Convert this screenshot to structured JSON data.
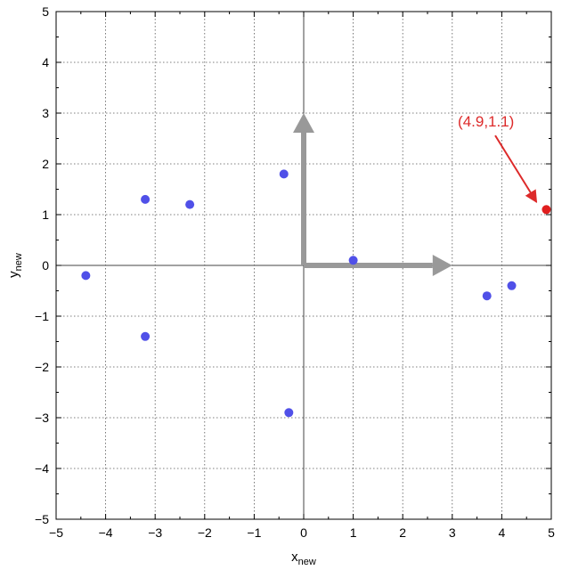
{
  "chart_data": {
    "type": "scatter",
    "xlabel": "x",
    "xlabel_sub": "new",
    "ylabel": "y",
    "ylabel_sub": "new",
    "xlim": [
      -5,
      5
    ],
    "ylim": [
      -5,
      5
    ],
    "xticks": [
      -5,
      -4,
      -3,
      -2,
      -1,
      0,
      1,
      2,
      3,
      4,
      5
    ],
    "yticks": [
      -5,
      -4,
      -3,
      -2,
      -1,
      0,
      1,
      2,
      3,
      4,
      5
    ],
    "grid": true,
    "grid_style": "dotted",
    "points": [
      {
        "x": -4.4,
        "y": -0.2
      },
      {
        "x": -3.2,
        "y": 1.3
      },
      {
        "x": -2.3,
        "y": 1.2
      },
      {
        "x": -3.2,
        "y": -1.4
      },
      {
        "x": -0.4,
        "y": 1.8
      },
      {
        "x": -0.3,
        "y": -2.9
      },
      {
        "x": 1.0,
        "y": 0.1
      },
      {
        "x": 3.7,
        "y": -0.6
      },
      {
        "x": 4.2,
        "y": -0.4
      }
    ],
    "point_color": "#5050e8",
    "highlight": {
      "x": 4.9,
      "y": 1.1,
      "color": "#e01e1e"
    },
    "annotation": {
      "text": "(4.9,1.1)",
      "text_x": 3.4,
      "text_y": 2.7,
      "target_x": 4.7,
      "target_y": 1.25,
      "color": "#dd2a2a"
    },
    "basis_vectors": [
      {
        "from": [
          0,
          0
        ],
        "to": [
          3.0,
          0
        ]
      },
      {
        "from": [
          0,
          0
        ],
        "to": [
          0,
          3.0
        ]
      }
    ],
    "basis_color": "#999999"
  }
}
